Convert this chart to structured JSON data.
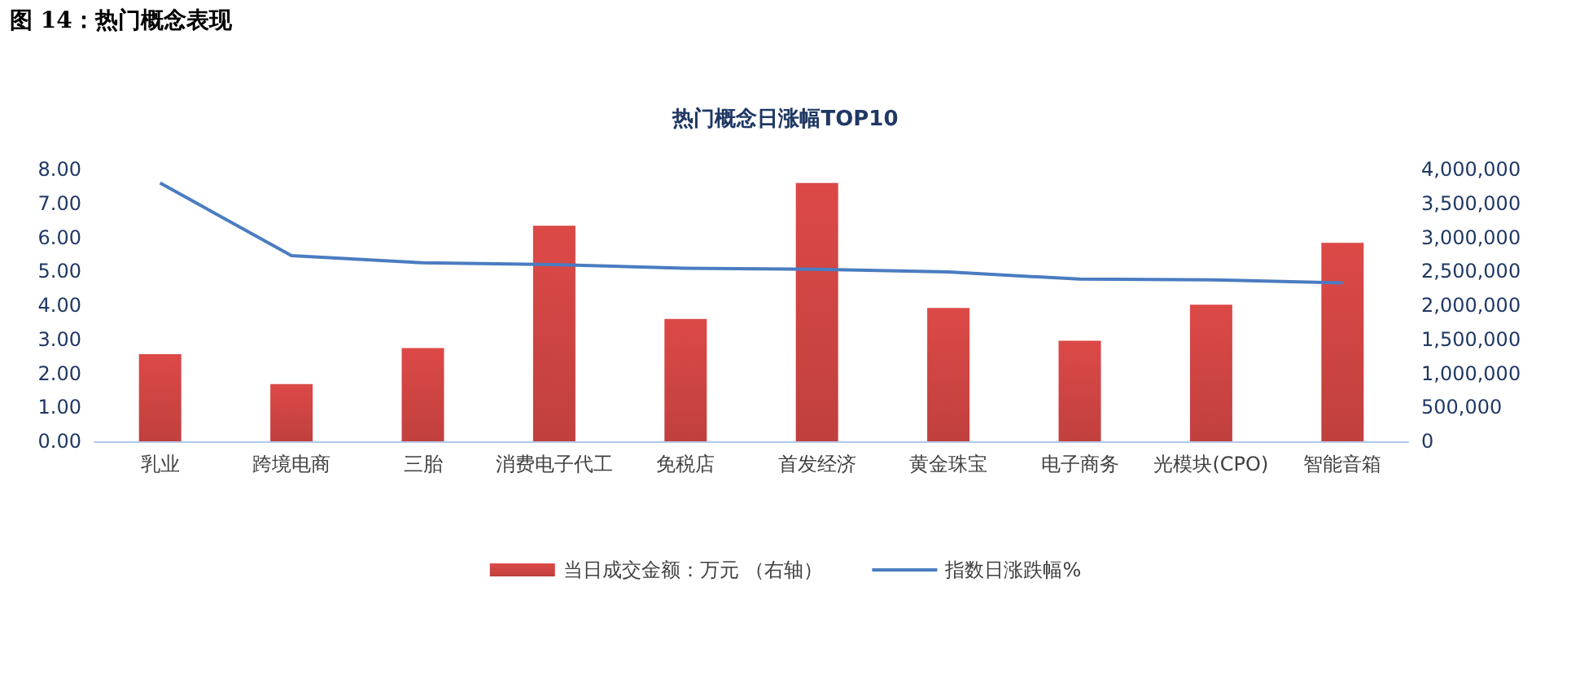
{
  "chart_data": {
    "type": "bar",
    "title": "热门概念日涨幅TOP10",
    "categories": [
      "乳业",
      "跨境电商",
      "三胎",
      "消费电子代工",
      "免税店",
      "首发经济",
      "黄金珠宝",
      "电子商务",
      "光模块(CPO)",
      "智能音箱"
    ],
    "series": [
      {
        "name": "当日成交金额：万元 （右轴）",
        "axis": "y2",
        "color": "#c0403e",
        "values": [
          1280000,
          840000,
          1370000,
          3170000,
          1800000,
          3800000,
          1960000,
          1480000,
          2010000,
          2920000
        ]
      },
      {
        "name": "指数日涨跌幅%",
        "type": "line",
        "color": "#4a7cc0",
        "marker": "none",
        "values": [
          7.6,
          5.46,
          5.25,
          5.2,
          5.09,
          5.06,
          4.98,
          4.77,
          4.75,
          4.66
        ]
      }
    ],
    "ylim": [
      0,
      8
    ],
    "yticks": [
      {
        "value": 0,
        "label": "0.00"
      },
      {
        "value": 1,
        "label": "1.00"
      },
      {
        "value": 2,
        "label": "2.00"
      },
      {
        "value": 3,
        "label": "3.00"
      },
      {
        "value": 4,
        "label": "4.00"
      },
      {
        "value": 5,
        "label": "5.00"
      },
      {
        "value": 6,
        "label": "6.00"
      },
      {
        "value": 7,
        "label": "7.00"
      },
      {
        "value": 8,
        "label": "8.00"
      }
    ],
    "y2lim": [
      0,
      4000000
    ],
    "y2ticks": [
      0,
      {
        "value": 500000,
        "label": "500,000"
      },
      {
        "value": 1000000,
        "label": "1,000,000"
      },
      {
        "value": 1500000,
        "label": "1,500,000"
      },
      {
        "value": 2000000,
        "label": "2,000,000"
      },
      {
        "value": 2500000,
        "label": "2,500,000"
      },
      {
        "value": 3000000,
        "label": "3,000,000"
      },
      {
        "value": 3500000,
        "label": "3,500,000"
      },
      {
        "value": 4000000,
        "label": "4,000,000"
      }
    ],
    "grid": false,
    "legend": "bottom",
    "annotations": [
      "图 14：热门概念表现"
    ]
  }
}
